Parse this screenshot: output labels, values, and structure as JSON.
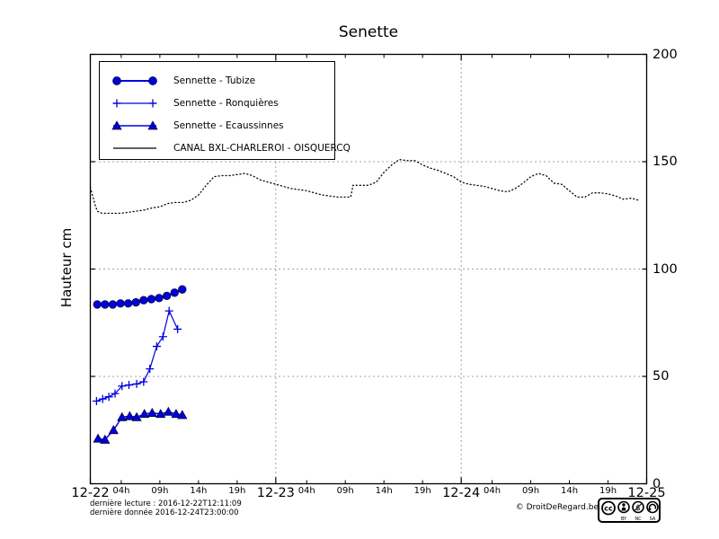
{
  "title": "Senette",
  "ylabel": "Hauteur cm",
  "footer": {
    "last_read": "dernière lecture : 2016-12-22T12:11:09",
    "last_data": "dernière donnée  2016-12-24T23:00:00",
    "copyright": "© DroitDeRegard.be",
    "cc_logo": "cc",
    "cc_labels": [
      "BY",
      "NC",
      "SA"
    ]
  },
  "chart_data": {
    "type": "line",
    "title": "Senette",
    "xlabel": "",
    "ylabel": "Hauteur cm",
    "ylim": [
      0,
      200
    ],
    "y_ticks": [
      0,
      50,
      100,
      150,
      200
    ],
    "x_range_hours": [
      0,
      72
    ],
    "grid": {
      "h_lines": [
        50,
        100,
        150
      ],
      "v_lines_hours": [
        24,
        48
      ],
      "style": "dotted"
    },
    "legend_position": "upper-left",
    "x_major_ticks": [
      {
        "hour": 0,
        "label": "12-22"
      },
      {
        "hour": 24,
        "label": "12-23"
      },
      {
        "hour": 48,
        "label": "12-24"
      },
      {
        "hour": 72,
        "label": "12-25"
      }
    ],
    "x_hour_ticks": [
      {
        "hour": 4,
        "label": "04h"
      },
      {
        "hour": 9,
        "label": "09h"
      },
      {
        "hour": 14,
        "label": "14h"
      },
      {
        "hour": 19,
        "label": "19h"
      },
      {
        "hour": 28,
        "label": "04h"
      },
      {
        "hour": 33,
        "label": "09h"
      },
      {
        "hour": 38,
        "label": "14h"
      },
      {
        "hour": 43,
        "label": "19h"
      },
      {
        "hour": 52,
        "label": "04h"
      },
      {
        "hour": 57,
        "label": "09h"
      },
      {
        "hour": 62,
        "label": "14h"
      },
      {
        "hour": 67,
        "label": "19h"
      }
    ],
    "series": [
      {
        "id": "tubize",
        "name": "Sennette - Tubize",
        "color": "#0000dd",
        "marker": "circle",
        "line_style": "solid",
        "line_width": 2,
        "points": [
          [
            0.9,
            83.5
          ],
          [
            1.9,
            83.5
          ],
          [
            2.9,
            83.5
          ],
          [
            3.9,
            84
          ],
          [
            4.9,
            84
          ],
          [
            5.9,
            84.5
          ],
          [
            6.9,
            85.5
          ],
          [
            7.9,
            86
          ],
          [
            8.9,
            86.5
          ],
          [
            9.9,
            87.5
          ],
          [
            10.9,
            89
          ],
          [
            11.9,
            90.5
          ]
        ]
      },
      {
        "id": "ronquieres",
        "name": "Sennette - Ronquières",
        "color": "#0000dd",
        "marker": "plus",
        "line_style": "solid",
        "line_width": 1.2,
        "points": [
          [
            0.8,
            38.5
          ],
          [
            1.6,
            39.5
          ],
          [
            2.4,
            40.5
          ],
          [
            3.2,
            42
          ],
          [
            4.1,
            45.5
          ],
          [
            5,
            46
          ],
          [
            6,
            46.5
          ],
          [
            6.9,
            47.5
          ],
          [
            7.7,
            53.5
          ],
          [
            8.6,
            64
          ],
          [
            9.4,
            68.5
          ],
          [
            10.2,
            80.5
          ],
          [
            11.3,
            72
          ]
        ]
      },
      {
        "id": "ecaussinnes",
        "name": "Sennette - Ecaussinnes",
        "color": "#0000dd",
        "marker": "triangle",
        "line_style": "solid",
        "line_width": 1.5,
        "points": [
          [
            1,
            21
          ],
          [
            1.9,
            20.5
          ],
          [
            3,
            25
          ],
          [
            4.1,
            31
          ],
          [
            5.1,
            31.5
          ],
          [
            6,
            31
          ],
          [
            7,
            32.5
          ],
          [
            8,
            33
          ],
          [
            9.1,
            32.5
          ],
          [
            10.1,
            33.5
          ],
          [
            11.1,
            32.5
          ],
          [
            11.9,
            32
          ]
        ]
      },
      {
        "id": "canal",
        "name": "CANAL BXL-CHARLEROI  - OISQUERCQ",
        "color": "#000000",
        "marker": "none",
        "line_style": "dotted",
        "line_width": 1.3,
        "points": [
          [
            0,
            138
          ],
          [
            0.3,
            134
          ],
          [
            0.6,
            130
          ],
          [
            0.9,
            127
          ],
          [
            1.5,
            126
          ],
          [
            3,
            126
          ],
          [
            4,
            126
          ],
          [
            5,
            126.5
          ],
          [
            6,
            127
          ],
          [
            7,
            127.5
          ],
          [
            8,
            128.5
          ],
          [
            9,
            129
          ],
          [
            10,
            130.5
          ],
          [
            11,
            131
          ],
          [
            12,
            131
          ],
          [
            13,
            132
          ],
          [
            14,
            134.5
          ],
          [
            15,
            139
          ],
          [
            16,
            143
          ],
          [
            17,
            143.5
          ],
          [
            18,
            143.5
          ],
          [
            19,
            144
          ],
          [
            20,
            144.5
          ],
          [
            21,
            143.5
          ],
          [
            22,
            141.5
          ],
          [
            23,
            140.5
          ],
          [
            24,
            139.5
          ],
          [
            25,
            138.5
          ],
          [
            26,
            137.5
          ],
          [
            27,
            137
          ],
          [
            28,
            136.5
          ],
          [
            29,
            135.5
          ],
          [
            30,
            134.5
          ],
          [
            31,
            134
          ],
          [
            32,
            133.5
          ],
          [
            33.7,
            133.5
          ],
          [
            34,
            139
          ],
          [
            35,
            139
          ],
          [
            36,
            139
          ],
          [
            37,
            140.5
          ],
          [
            38,
            145
          ],
          [
            39,
            148.5
          ],
          [
            40,
            151
          ],
          [
            41,
            150.5
          ],
          [
            42,
            150.5
          ],
          [
            43,
            148.5
          ],
          [
            44,
            147
          ],
          [
            45,
            146
          ],
          [
            46,
            144.5
          ],
          [
            47,
            143
          ],
          [
            48,
            140.5
          ],
          [
            49,
            139.5
          ],
          [
            50,
            139
          ],
          [
            51,
            138.5
          ],
          [
            52,
            137.5
          ],
          [
            53,
            136.5
          ],
          [
            54,
            136
          ],
          [
            55,
            137.5
          ],
          [
            56,
            140
          ],
          [
            57,
            143
          ],
          [
            58,
            144.5
          ],
          [
            59,
            143.5
          ],
          [
            60,
            140
          ],
          [
            61,
            139.5
          ],
          [
            62,
            136.5
          ],
          [
            63,
            133.5
          ],
          [
            64,
            133.5
          ],
          [
            65,
            135.5
          ],
          [
            66,
            135.5
          ],
          [
            67,
            135
          ],
          [
            68,
            134
          ],
          [
            69,
            132.5
          ],
          [
            70,
            133
          ],
          [
            71,
            132
          ]
        ]
      }
    ]
  }
}
